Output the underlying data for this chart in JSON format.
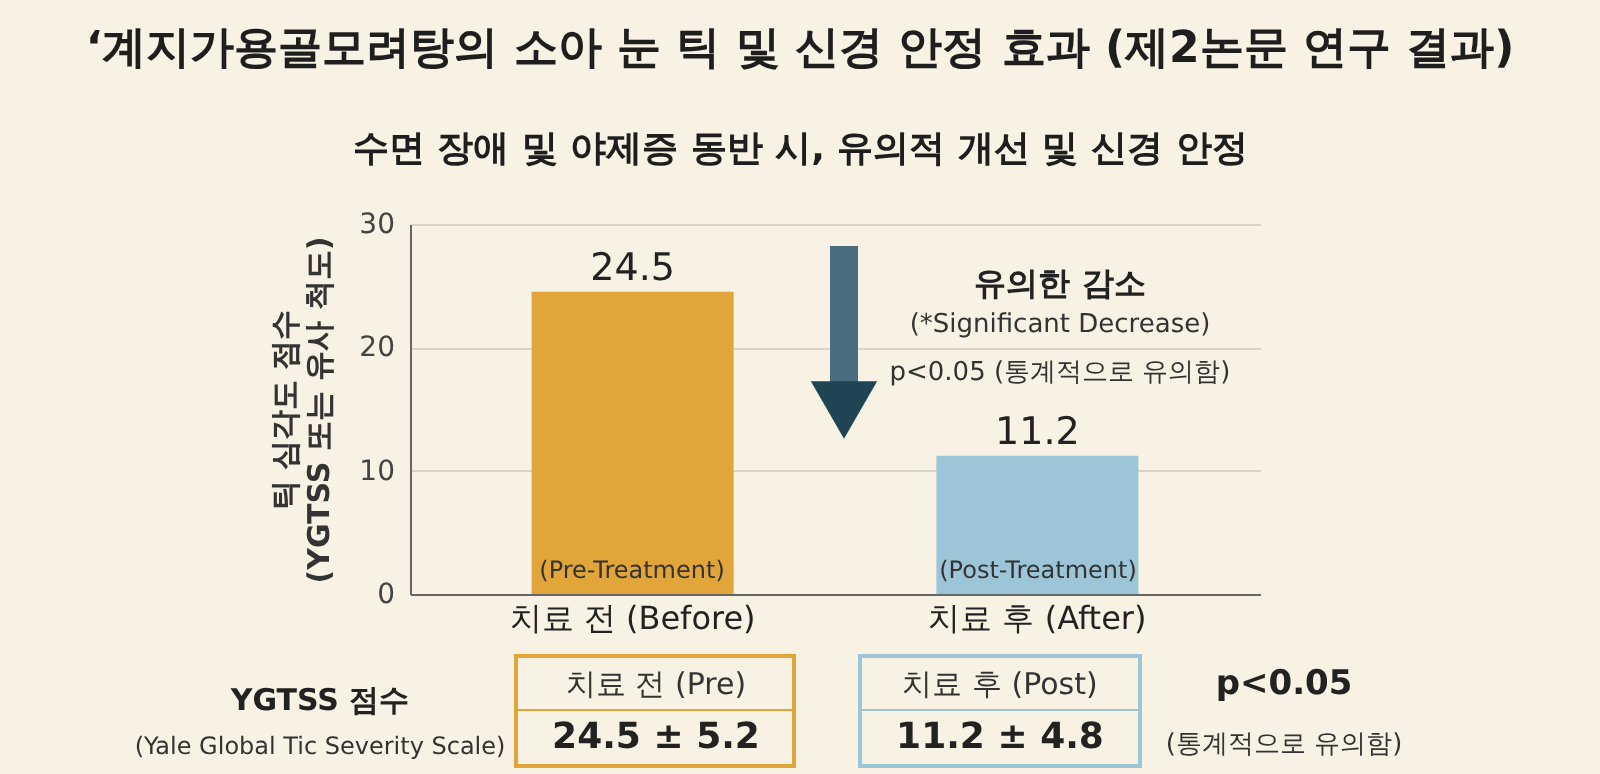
{
  "chart_data": {
    "type": "bar",
    "title": "‘계지가용골모려탕의 소아 눈 틱 및 신경 안정 효과 (제2논문 연구 결과)",
    "subtitle": "수면 장애 및 야제증 동반 시, 유의적 개선 및 신경 안정",
    "ylabel": "틱 심각도 점수 (YGTSS 또는 유사 척도)",
    "categories": [
      "치료 전 (Before)",
      "치료 후 (After)"
    ],
    "values": [
      24.5,
      11.2
    ],
    "colors": [
      "#e2a53a",
      "#9cc5d8"
    ],
    "data_labels": true,
    "ylim": [
      0,
      30
    ],
    "yticks": [
      0,
      10,
      20,
      30
    ],
    "grid": "y",
    "annotations": [
      "(Pre-Treatment)",
      "(Post-Treatment)",
      "유의한 감소",
      "(*Significant Decrease)",
      "p<0.05 (통계적으로 유의함)",
      "YGTSS 점수",
      "(Yale Global Tic Severity Scale)",
      "치료 전 (Pre)",
      "24.5 ± 5.2",
      "치료 후 (Post)",
      "11.2 ± 4.8",
      "p<0.05",
      "(통계적으로 유의함)"
    ]
  }
}
